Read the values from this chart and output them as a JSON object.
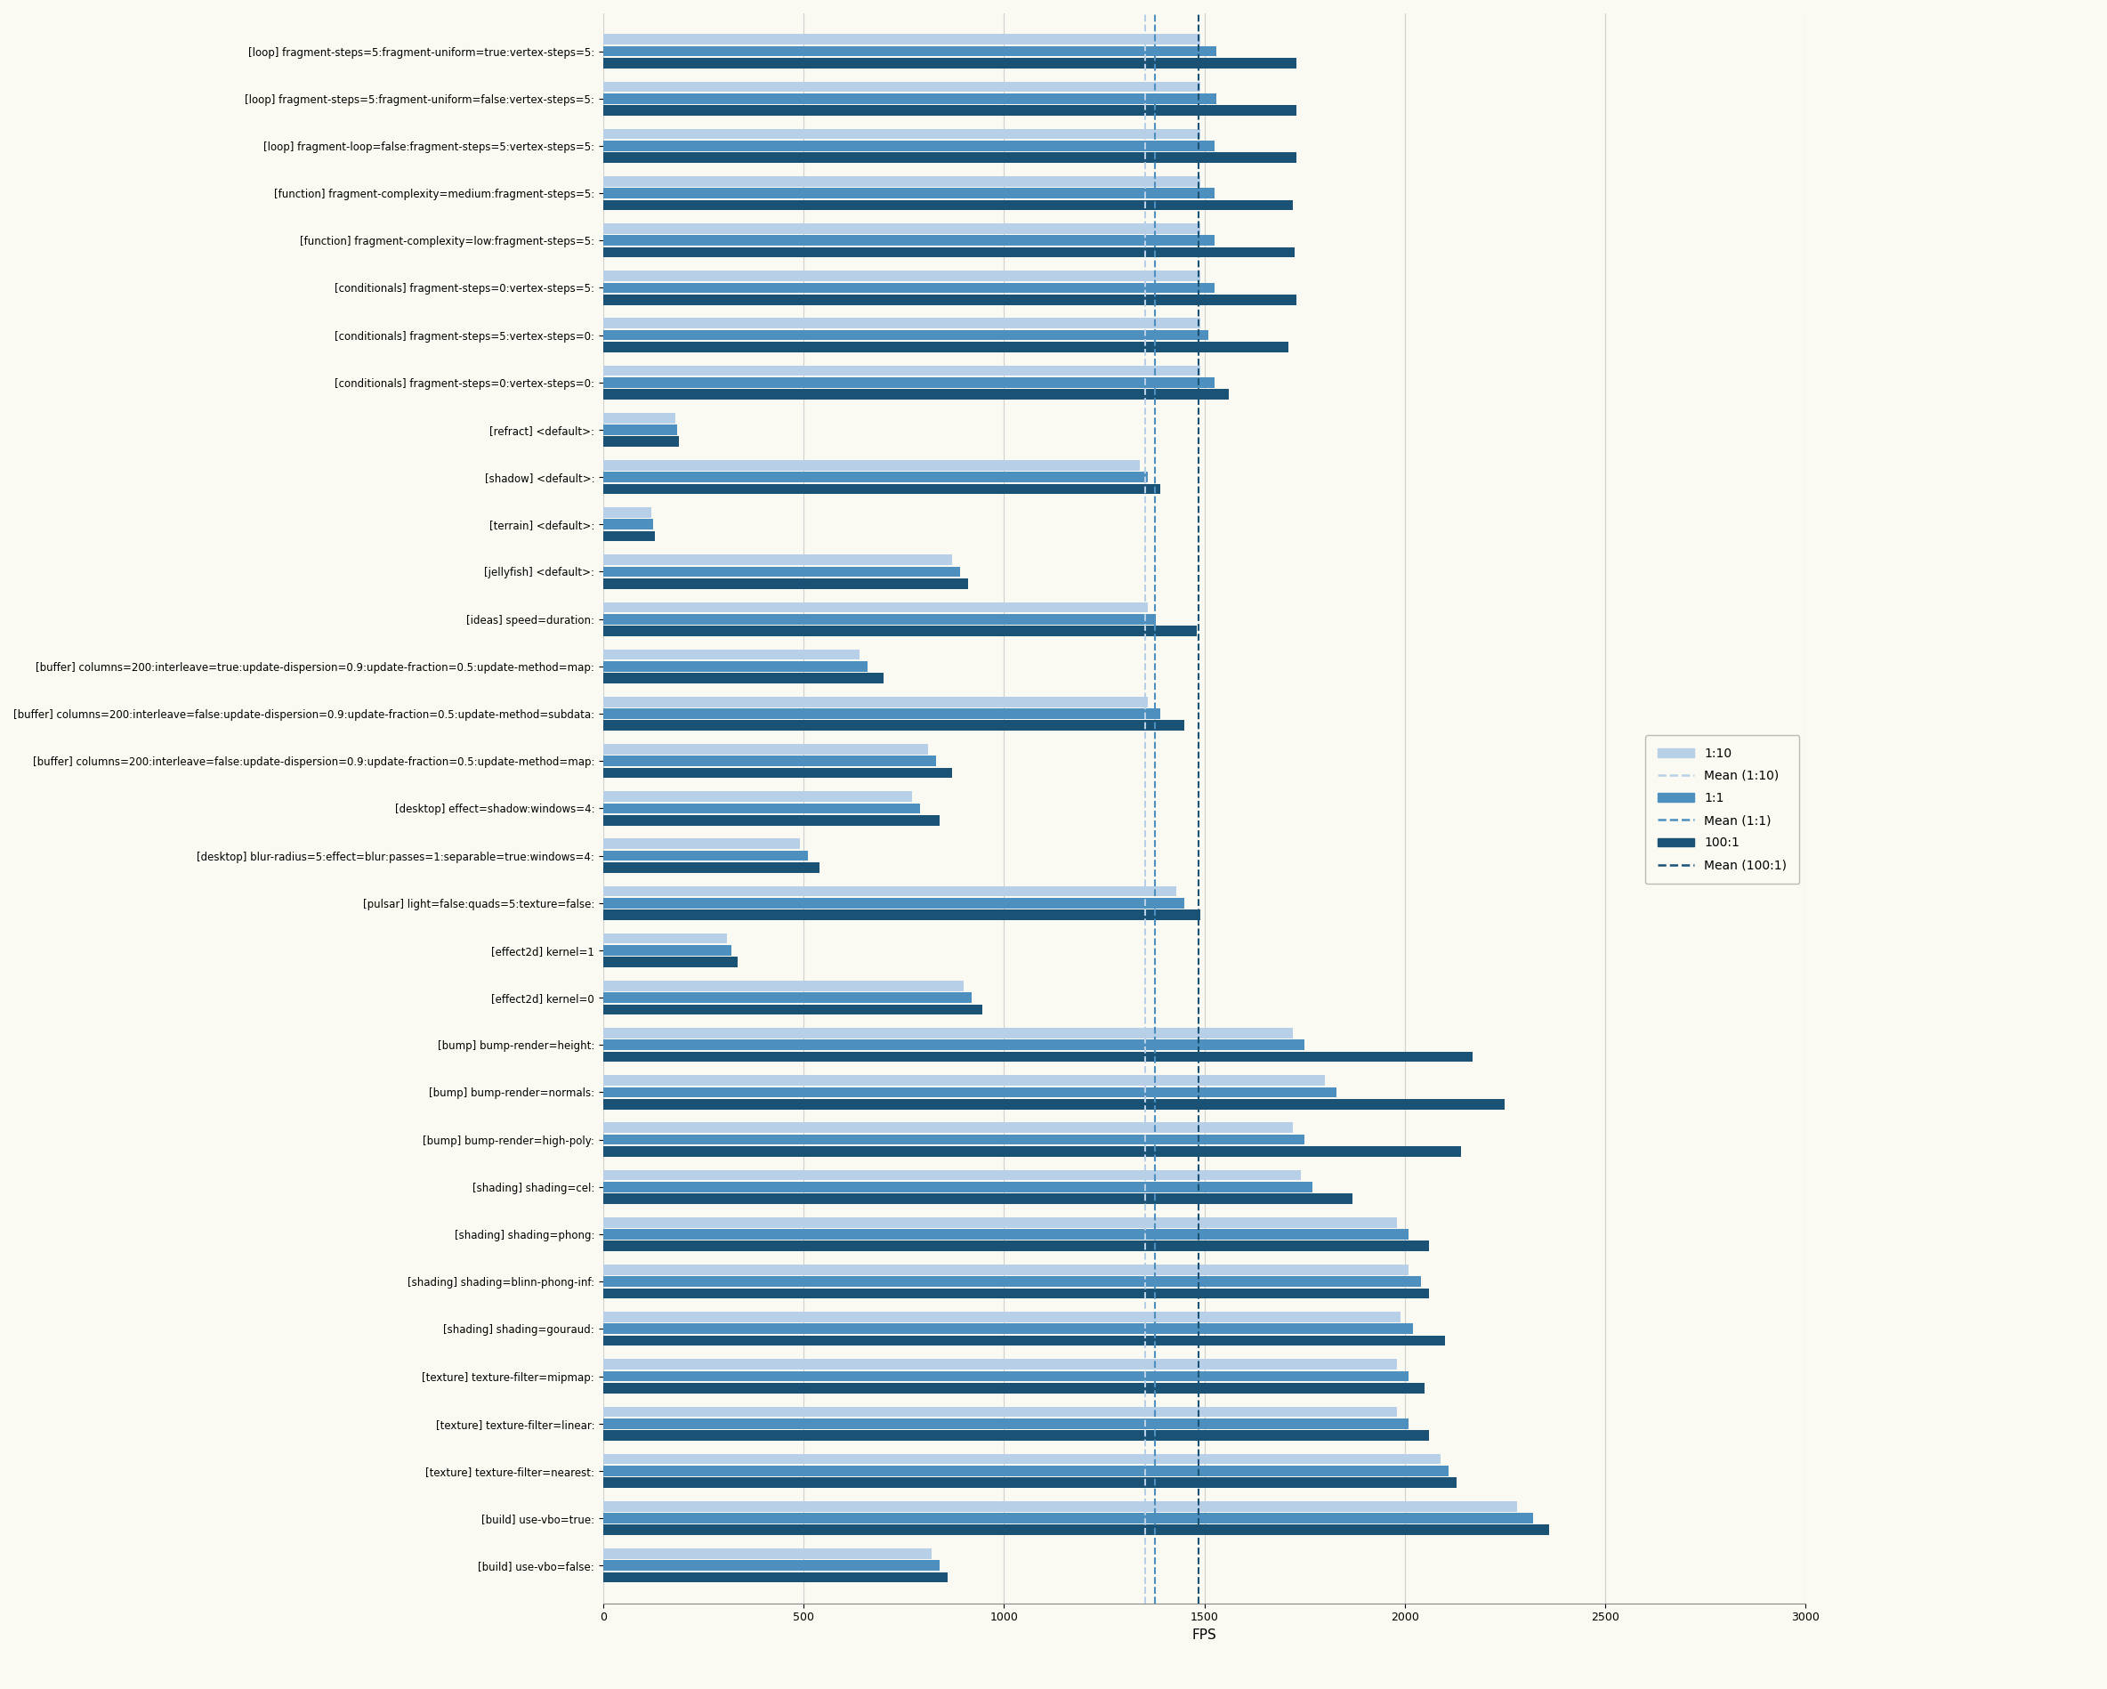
{
  "xlabel": "FPS",
  "background_color": "#fafaf2",
  "categories": [
    "[loop] fragment-steps=5:fragment-uniform=true:vertex-steps=5:",
    "[loop] fragment-steps=5:fragment-uniform=false:vertex-steps=5:",
    "[loop] fragment-loop=false:fragment-steps=5:vertex-steps=5:",
    "[function] fragment-complexity=medium:fragment-steps=5:",
    "[function] fragment-complexity=low:fragment-steps=5:",
    "[conditionals] fragment-steps=0:vertex-steps=5:",
    "[conditionals] fragment-steps=5:vertex-steps=0:",
    "[conditionals] fragment-steps=0:vertex-steps=0:",
    "[refract] <default>:",
    "[shadow] <default>:",
    "[terrain] <default>:",
    "[jellyfish] <default>:",
    "[ideas] speed=duration:",
    "[buffer] columns=200:interleave=true:update-dispersion=0.9:update-fraction=0.5:update-method=map:",
    "[buffer] columns=200:interleave=false:update-dispersion=0.9:update-fraction=0.5:update-method=subdata:",
    "[buffer] columns=200:interleave=false:update-dispersion=0.9:update-fraction=0.5:update-method=map:",
    "[desktop] effect=shadow:windows=4:",
    "[desktop] blur-radius=5:effect=blur:passes=1:separable=true:windows=4:",
    "[pulsar] light=false:quads=5:texture=false:",
    "[effect2d] kernel=1",
    "[effect2d] kernel=0",
    "[bump] bump-render=height:",
    "[bump] bump-render=normals:",
    "[bump] bump-render=high-poly:",
    "[shading] shading=cel:",
    "[shading] shading=phong:",
    "[shading] shading=blinn-phong-inf:",
    "[shading] shading=gouraud:",
    "[texture] texture-filter=mipmap:",
    "[texture] texture-filter=linear:",
    "[texture] texture-filter=nearest:",
    "[build] use-vbo=true:",
    "[build] use-vbo=false:"
  ],
  "values_1_10": [
    1490,
    1490,
    1490,
    1490,
    1490,
    1490,
    1490,
    1490,
    180,
    1340,
    120,
    870,
    1360,
    640,
    1360,
    810,
    770,
    490,
    1430,
    310,
    900,
    1720,
    1800,
    1720,
    1740,
    1980,
    2010,
    1990,
    1980,
    1980,
    2090,
    2280,
    820
  ],
  "values_1_1": [
    1530,
    1530,
    1525,
    1525,
    1525,
    1525,
    1510,
    1525,
    185,
    1360,
    125,
    890,
    1380,
    660,
    1390,
    830,
    790,
    510,
    1450,
    320,
    920,
    1750,
    1830,
    1750,
    1770,
    2010,
    2040,
    2020,
    2010,
    2010,
    2110,
    2320,
    840
  ],
  "values_100_1": [
    1730,
    1730,
    1730,
    1720,
    1725,
    1730,
    1710,
    1560,
    190,
    1390,
    130,
    910,
    1480,
    700,
    1450,
    870,
    840,
    540,
    1490,
    335,
    945,
    2170,
    2250,
    2140,
    1870,
    2060,
    2060,
    2100,
    2050,
    2060,
    2130,
    2360,
    860
  ],
  "color_1_10": "#b8cfe8",
  "color_1_1": "#4d8fbf",
  "color_100_1": "#1a5276",
  "xlim": [
    0,
    3000
  ],
  "xticks": [
    0,
    500,
    1000,
    1500,
    2000,
    2500,
    3000
  ],
  "legend_labels": [
    "1:10",
    "Mean (1:10)",
    "1:1",
    "Mean (1:1)",
    "100:1",
    "Mean (100:1)"
  ]
}
